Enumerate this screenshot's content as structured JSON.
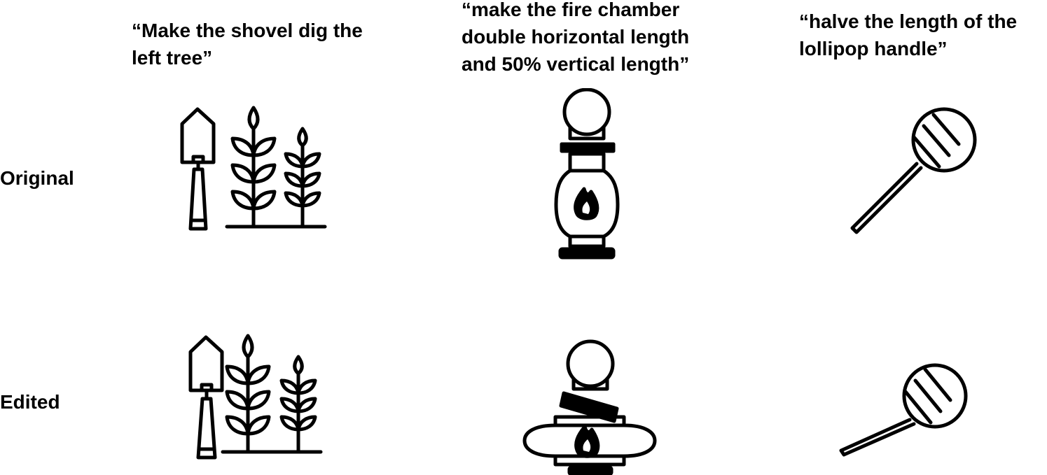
{
  "captions": [
    "“Make the shovel dig the\nleft tree”",
    "“make the fire chamber\ndouble horizontal length\nand 50% vertical length”",
    "“halve the length of the\nlollipop handle”"
  ],
  "rows": {
    "original": "Original",
    "edited": "Edited"
  },
  "icons": {
    "shovel_trees": "shovel-and-trees-icon",
    "lantern": "lantern-icon",
    "lollipop": "lollipop-icon"
  },
  "colors": {
    "ink": "#000000",
    "paper": "#ffffff"
  }
}
